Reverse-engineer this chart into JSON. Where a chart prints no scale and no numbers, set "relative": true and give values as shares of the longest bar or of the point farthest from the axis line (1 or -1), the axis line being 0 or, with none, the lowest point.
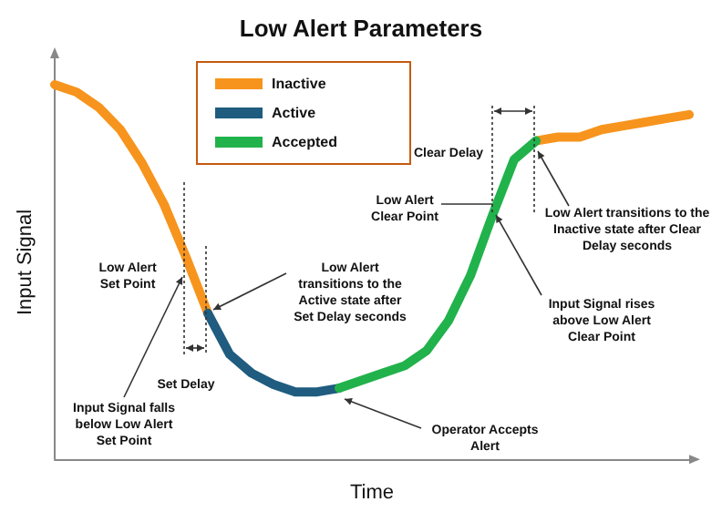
{
  "chart_data": {
    "type": "line",
    "title": "Low Alert Parameters",
    "xlabel": "Time",
    "ylabel": "Input Signal",
    "relative": true,
    "legend": "top",
    "grid": false,
    "marker": "none",
    "line_style": "solid",
    "categories": [
      null,
      null,
      null,
      null,
      null,
      null,
      null,
      null,
      null,
      null,
      null,
      null,
      null,
      null,
      null,
      null,
      null,
      null,
      null,
      null,
      null,
      null,
      null,
      null,
      null,
      null,
      null,
      null,
      null,
      null
    ],
    "series": [
      {
        "name": "Inactive",
        "color": "#f7941d",
        "values": [
          1.0,
          0.98,
          0.94,
          0.88,
          0.79,
          0.68,
          0.54,
          0.39,
          null,
          null,
          null,
          null,
          null,
          null,
          null,
          null,
          null,
          null,
          null,
          null,
          null,
          null,
          0.85,
          0.86,
          0.86,
          0.88,
          0.89,
          0.9,
          0.91,
          0.92
        ]
      },
      {
        "name": "Active",
        "color": "#1f5c7f",
        "values": [
          null,
          null,
          null,
          null,
          null,
          null,
          null,
          0.39,
          0.28,
          0.23,
          0.2,
          0.18,
          0.18,
          0.19,
          null,
          null,
          null,
          null,
          null,
          null,
          null,
          null,
          null,
          null,
          null,
          null,
          null,
          null,
          null,
          null
        ]
      },
      {
        "name": "Accepted",
        "color": "#21b24b",
        "values": [
          null,
          null,
          null,
          null,
          null,
          null,
          null,
          null,
          null,
          null,
          null,
          null,
          null,
          0.19,
          0.21,
          0.23,
          0.25,
          0.29,
          0.37,
          0.49,
          0.65,
          0.8,
          0.85,
          null,
          null,
          null,
          null,
          null,
          null,
          null
        ]
      }
    ],
    "annotations": [
      "Low Alert\nSet Point",
      "Set Delay",
      "Low Alert\ntransitions to the\nActive state after\nSet Delay seconds",
      "Input Signal falls\nbelow Low Alert\nSet Point",
      "Operator Accepts\nAlert",
      "Clear Delay",
      "Low Alert\nClear Point",
      "Input Signal rises\nabove Low Alert\nClear Point",
      "Low Alert transitions to the\nInactive state after Clear\nDelay seconds"
    ]
  }
}
